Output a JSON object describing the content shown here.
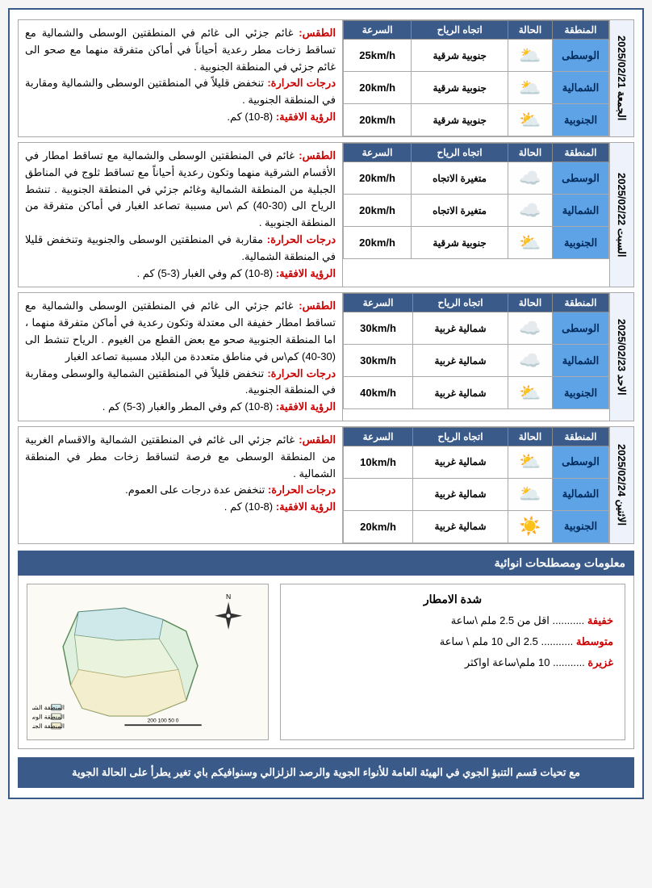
{
  "headers": {
    "region": "المنطقة",
    "condition": "الحالة",
    "wind": "اتجاه الرياح",
    "speed": "السرعة"
  },
  "labels": {
    "weather": "الطقس:",
    "temp": "درجات الحرارة:",
    "vis": "الرؤية الافقية:"
  },
  "days": [
    {
      "date": "الجمعة 2025/02/21",
      "rows": [
        {
          "region": "الوسطى",
          "icon": "🌥️",
          "dir": "جنوبية شرقية",
          "speed": "25km/h"
        },
        {
          "region": "الشمالية",
          "icon": "🌥️",
          "dir": "جنوبية شرقية",
          "speed": "20km/h"
        },
        {
          "region": "الجنوبية",
          "icon": "⛅",
          "dir": "جنوبية شرقية",
          "speed": "20km/h"
        }
      ],
      "weather": "غائم جزئي الى غائم في المنطقتين الوسطى والشمالية مع تساقط زخات مطر رعدية أحياناً في أماكن متفرقة منهما مع صحو الى غائم جزئي في المنطقة الجنوبية .",
      "temp": "تنخفض قليلاً في المنطقتين الوسطى والشمالية ومقاربة في المنطقة الجنوبية .",
      "vis": "(8-10) كم."
    },
    {
      "date": "السبت 2025/02/22",
      "rows": [
        {
          "region": "الوسطى",
          "icon": "☁️",
          "dir": "متغيرة الاتجاه",
          "speed": "20km/h"
        },
        {
          "region": "الشمالية",
          "icon": "☁️",
          "dir": "متغيرة الاتجاه",
          "speed": "20km/h"
        },
        {
          "region": "الجنوبية",
          "icon": "⛅",
          "dir": "جنوبية شرقية",
          "speed": "20km/h"
        }
      ],
      "weather": "غائم في المنطقتين الوسطى والشمالية مع تساقط امطار في الأقسام الشرقية منهما وتكون رعدية أحياناً مع تساقط ثلوج في المناطق الجبلية من المنطقة الشمالية وغائم جزئي في المنطقة الجنوبية . تنشط الرياح الى (30-40) كم \\س مسببة تصاعد الغبار في أماكن متفرقة من المنطقة الجنوبية .",
      "temp": "مقاربة في المنطقتين الوسطى والجنوبية وتنخفض قليلا في المنطقة الشمالية.",
      "vis": "(8-10) كم وفي الغبار (3-5) كم ."
    },
    {
      "date": "الاحد 2025/02/23",
      "rows": [
        {
          "region": "الوسطى",
          "icon": "☁️",
          "dir": "شمالية غربية",
          "speed": "30km/h"
        },
        {
          "region": "الشمالية",
          "icon": "☁️",
          "dir": "شمالية غربية",
          "speed": "30km/h"
        },
        {
          "region": "الجنوبية",
          "icon": "⛅",
          "dir": "شمالية غربية",
          "speed": "40km/h"
        }
      ],
      "weather": "غائم جزئي الى غائم في المنطقتين الوسطى والشمالية مع تساقط امطار خفيفة الى معتدلة وتكون رعدية في أماكن متفرقة منهما ، اما المنطقة الجنوبية صحو مع بعض القطع من الغيوم . الرياح تنشط الى (30-40) كم\\س في مناطق متعددة من البلاد مسببة تصاعد الغبار",
      "temp": "تنخفض قليلاً في المنطقتين الشمالية والوسطى ومقاربة في المنطقة الجنوبية.",
      "vis": "(8-10) كم وفي المطر والغبار (3-5) كم ."
    },
    {
      "date": "الاثنين 2025/02/24",
      "rows": [
        {
          "region": "الوسطى",
          "icon": "⛅",
          "dir": "شمالية غربية",
          "speed": "10km/h"
        },
        {
          "region": "الشمالية",
          "icon": "🌥️",
          "dir": "شمالية غربية",
          "speed": ""
        },
        {
          "region": "الجنوبية",
          "icon": "☀️",
          "dir": "شمالية غربية",
          "speed": "20km/h"
        }
      ],
      "weather": "غائم جزئي الى غائم في المنطقتين الشمالية والاقسام الغربية من المنطقة الوسطى مع فرصة لتساقط زخات مطر في المنطقة الشمالية .",
      "temp": "تنخفض عدة درجات على العموم.",
      "vis": "(8-10) كم ."
    }
  ],
  "info_title": "معلومات ومصطلحات انوائية",
  "rain": {
    "title": "شدة الامطار",
    "light_lbl": "خفيفة",
    "light_dots": "...........",
    "light_val": "اقل من 2.5 ملم \\ساعة",
    "mod_lbl": "متوسطة",
    "mod_dots": "...........",
    "mod_val": "2.5 الى 10 ملم \\ ساعة",
    "heavy_lbl": "غزيرة",
    "heavy_dots": "...........",
    "heavy_val": "10 ملم\\ساعة اواكثر"
  },
  "footer": "مع تحيات قسم التنبؤ الجوي في الهيئة العامة للأنواء الجوية والرصد الزلزالي وسنوافيكم باي تغير يطرأ على الحالة الجوية"
}
